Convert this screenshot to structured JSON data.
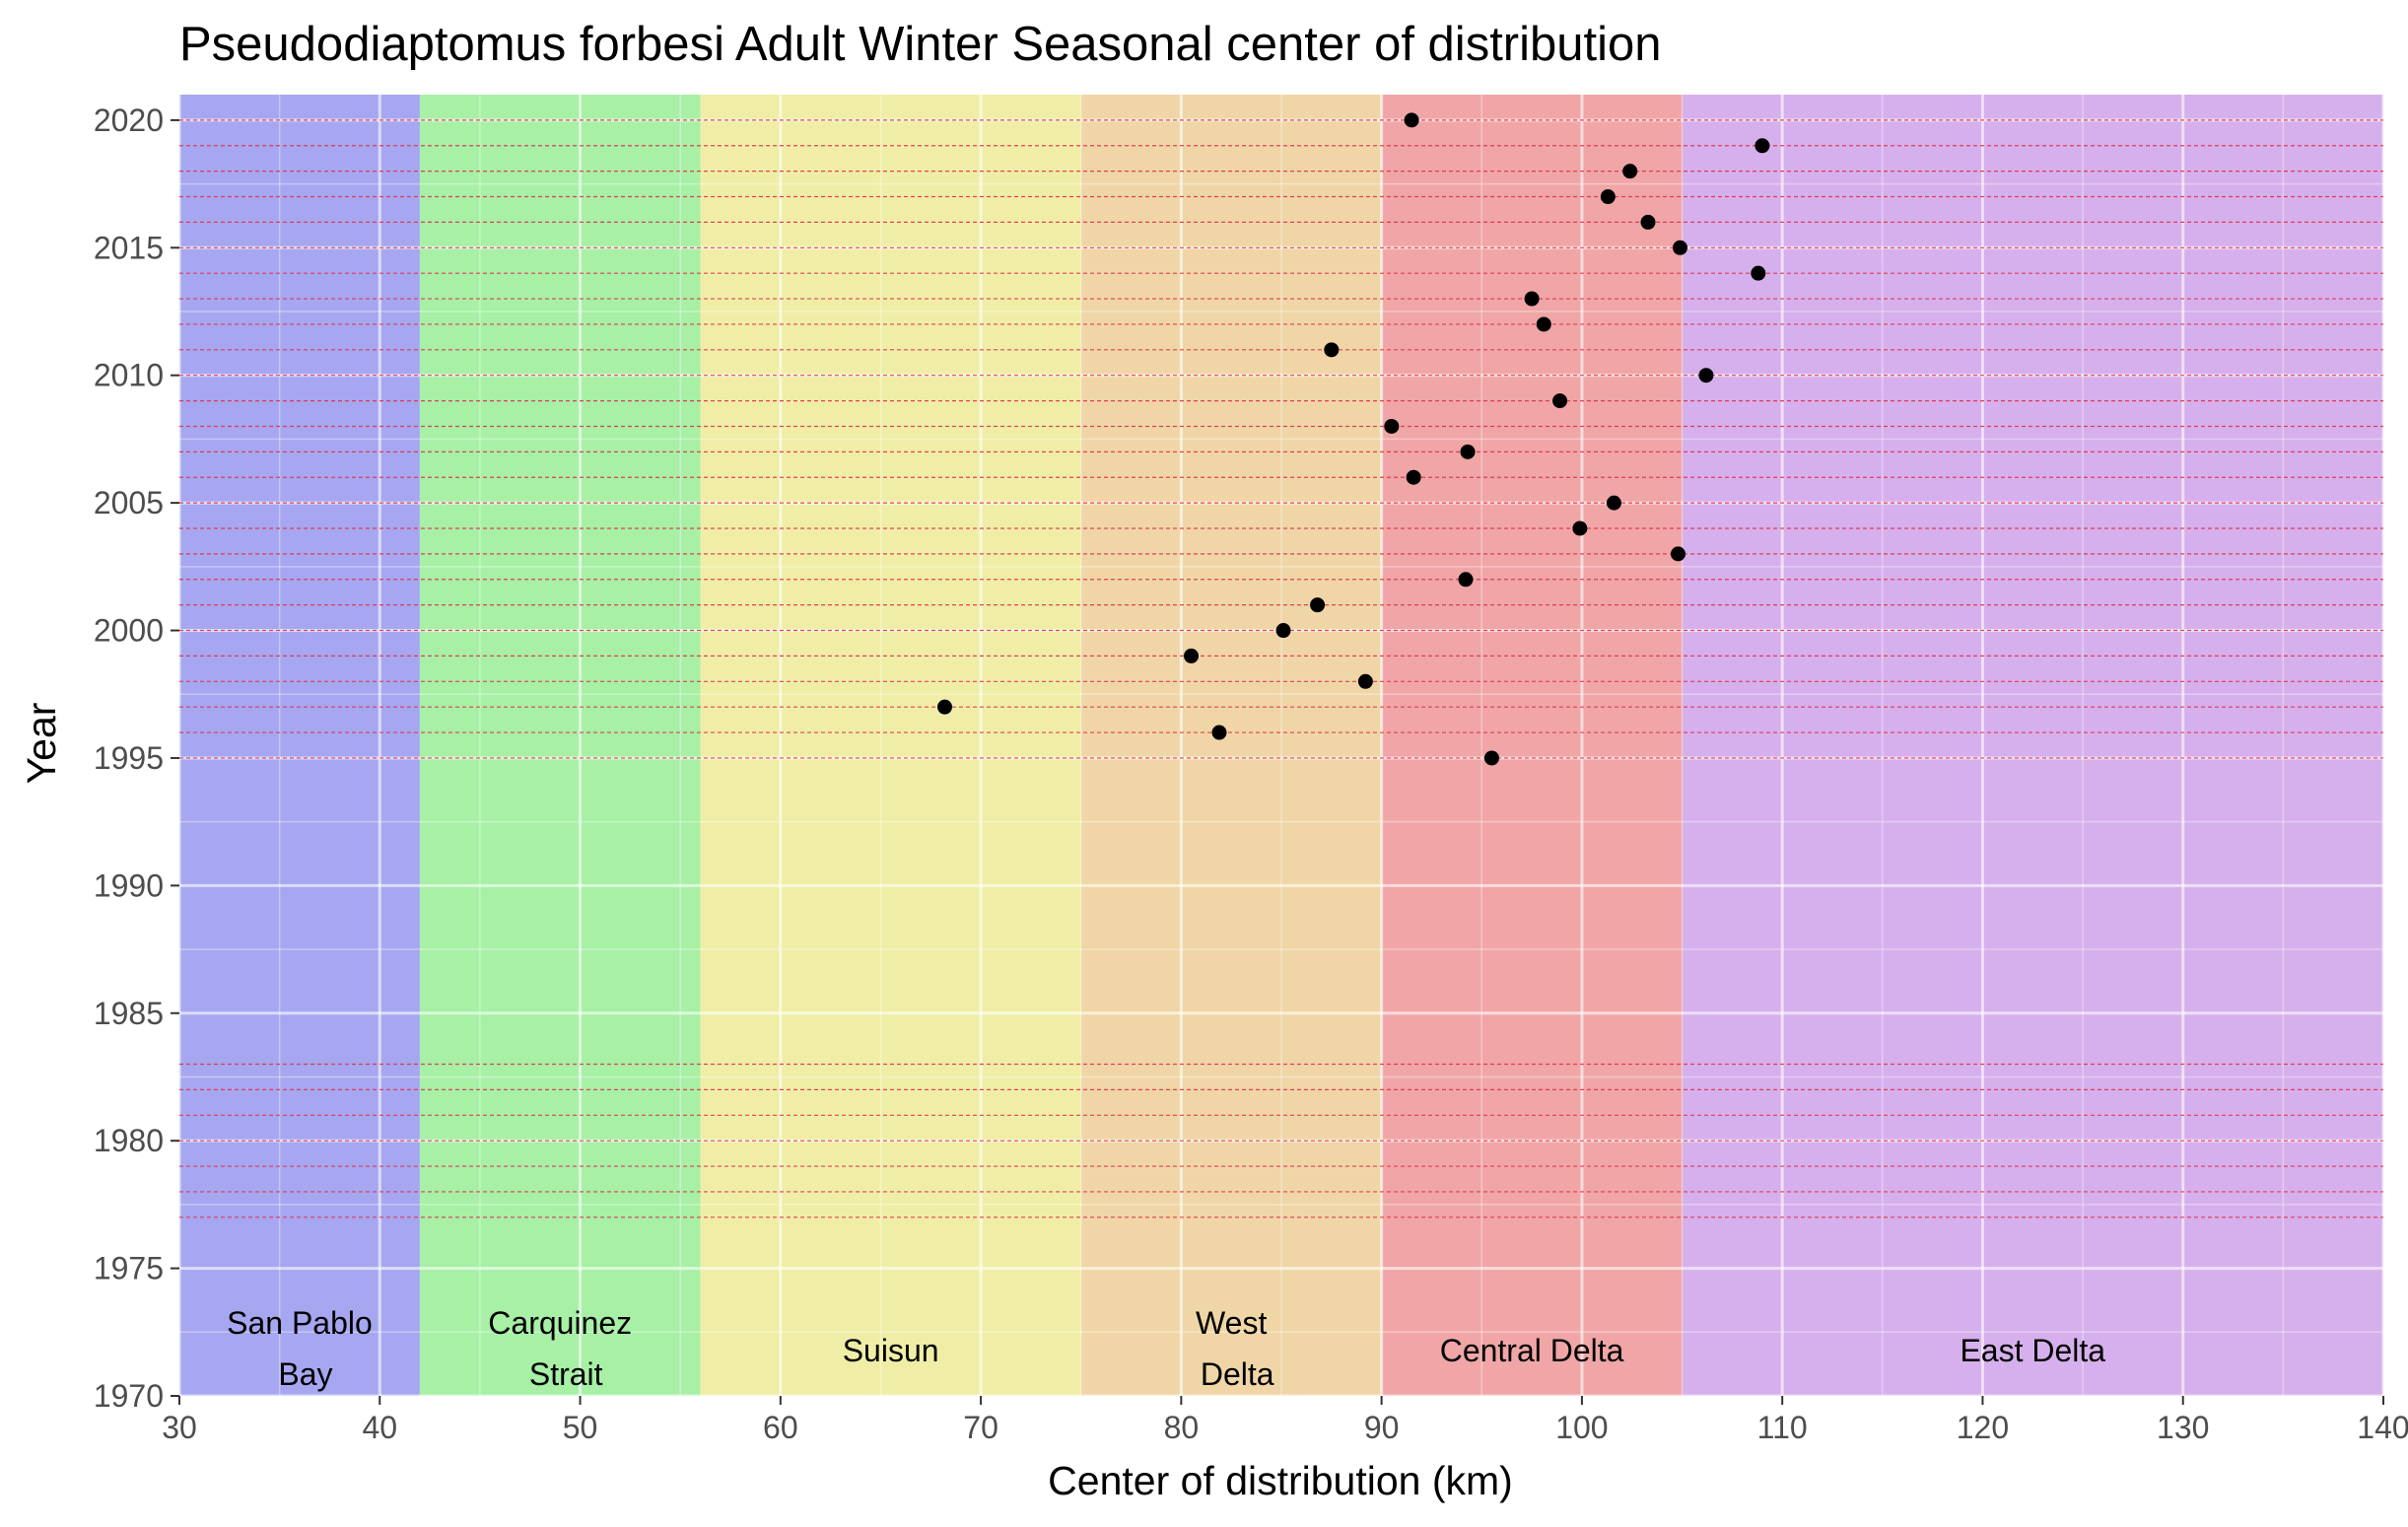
{
  "chart_data": {
    "type": "scatter",
    "title": "Pseudodiaptomus forbesi Adult Winter Seasonal center of distribution",
    "xlabel": "Center of distribution (km)",
    "ylabel": "Year",
    "xlim": [
      30,
      140
    ],
    "ylim": [
      1970,
      2021
    ],
    "x_ticks": [
      30,
      40,
      50,
      60,
      70,
      80,
      90,
      100,
      110,
      120,
      130,
      140
    ],
    "x_tick_labels": [
      "30",
      "40",
      "50",
      "60",
      "70",
      "80",
      "90",
      "100",
      "110",
      "120",
      "130",
      "140"
    ],
    "y_ticks": [
      1970,
      1975,
      1980,
      1985,
      1990,
      1995,
      2000,
      2005,
      2010,
      2015,
      2020
    ],
    "y_tick_labels": [
      "1970",
      "1975",
      "1980",
      "1985",
      "1990",
      "1995",
      "2000",
      "2005",
      "2010",
      "2015",
      "2020"
    ],
    "grid": true,
    "regions": [
      {
        "name_lines": [
          "San Pablo",
          "Bay"
        ],
        "xmin": 30,
        "xmax": 42,
        "color": "#a6a7f0"
      },
      {
        "name_lines": [
          "Carquinez",
          "Strait"
        ],
        "xmin": 42,
        "xmax": 56,
        "color": "#a7f0a6"
      },
      {
        "name_lines": [
          "Suisun"
        ],
        "xmin": 56,
        "xmax": 75,
        "color": "#f0eea6"
      },
      {
        "name_lines": [
          "West",
          "Delta"
        ],
        "xmin": 75,
        "xmax": 90,
        "color": "#f0d6a6"
      },
      {
        "name_lines": [
          "Central Delta"
        ],
        "xmin": 90,
        "xmax": 105,
        "color": "#f0a6a6"
      },
      {
        "name_lines": [
          "East Delta"
        ],
        "xmin": 105,
        "xmax": 140,
        "color": "#d6b0ec"
      }
    ],
    "reference_lines_color": "#e0304a",
    "reference_line_years": [
      1977,
      1978,
      1979,
      1980,
      1981,
      1982,
      1983,
      1995,
      1996,
      1997,
      1998,
      1999,
      2000,
      2001,
      2002,
      2003,
      2004,
      2005,
      2006,
      2007,
      2008,
      2009,
      2010,
      2011,
      2012,
      2013,
      2014,
      2015,
      2016,
      2017,
      2018,
      2019,
      2020
    ],
    "point_color": "#000000",
    "points": [
      {
        "x": 95.5,
        "y": 1995
      },
      {
        "x": 81.9,
        "y": 1996
      },
      {
        "x": 68.2,
        "y": 1997
      },
      {
        "x": 89.2,
        "y": 1998
      },
      {
        "x": 80.5,
        "y": 1999
      },
      {
        "x": 85.1,
        "y": 2000
      },
      {
        "x": 86.8,
        "y": 2001
      },
      {
        "x": 94.2,
        "y": 2002
      },
      {
        "x": 104.8,
        "y": 2003
      },
      {
        "x": 99.9,
        "y": 2004
      },
      {
        "x": 101.6,
        "y": 2005
      },
      {
        "x": 91.6,
        "y": 2006
      },
      {
        "x": 94.3,
        "y": 2007
      },
      {
        "x": 90.5,
        "y": 2008
      },
      {
        "x": 98.9,
        "y": 2009
      },
      {
        "x": 106.2,
        "y": 2010
      },
      {
        "x": 87.5,
        "y": 2011
      },
      {
        "x": 98.1,
        "y": 2012
      },
      {
        "x": 97.5,
        "y": 2013
      },
      {
        "x": 108.8,
        "y": 2014
      },
      {
        "x": 104.9,
        "y": 2015
      },
      {
        "x": 103.3,
        "y": 2016
      },
      {
        "x": 101.3,
        "y": 2017
      },
      {
        "x": 102.4,
        "y": 2018
      },
      {
        "x": 109.0,
        "y": 2019
      },
      {
        "x": 91.5,
        "y": 2020
      }
    ]
  }
}
